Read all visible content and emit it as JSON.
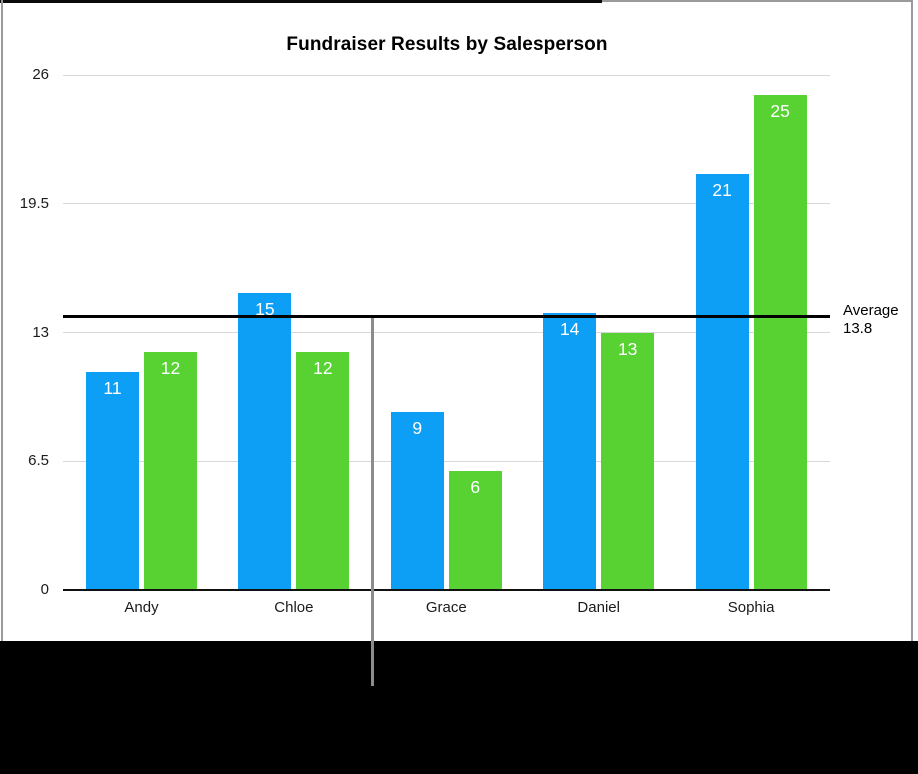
{
  "chart_data": {
    "type": "bar",
    "title": "Fundraiser Results by Salesperson",
    "categories": [
      "Andy",
      "Chloe",
      "Grace",
      "Daniel",
      "Sophia"
    ],
    "series": [
      {
        "name": "blue-series",
        "color": "#0D9FF6",
        "values": [
          11,
          15,
          9,
          14,
          21
        ]
      },
      {
        "name": "green-series",
        "color": "#58D233",
        "values": [
          12,
          12,
          6,
          13,
          25
        ]
      }
    ],
    "y_ticks": [
      {
        "value": 0,
        "label": "0"
      },
      {
        "value": 6.5,
        "label": "6.5"
      },
      {
        "value": 13,
        "label": "13"
      },
      {
        "value": 19.5,
        "label": "19.5"
      },
      {
        "value": 26,
        "label": "26"
      }
    ],
    "ylim": [
      0,
      26
    ],
    "grid": true,
    "legend": "none",
    "value_labels": "white, inside top of each bar",
    "reference_line": {
      "label": "Average",
      "value": 13.8,
      "display_value": "13.8",
      "color": "#000000"
    }
  },
  "frame": {
    "background": "#ffffff",
    "bottom_strip_color": "#000000",
    "border_color": "#9a9a9a",
    "gridline_color": "#d8d8d8",
    "guide_line_color": "#8c8c8c"
  }
}
